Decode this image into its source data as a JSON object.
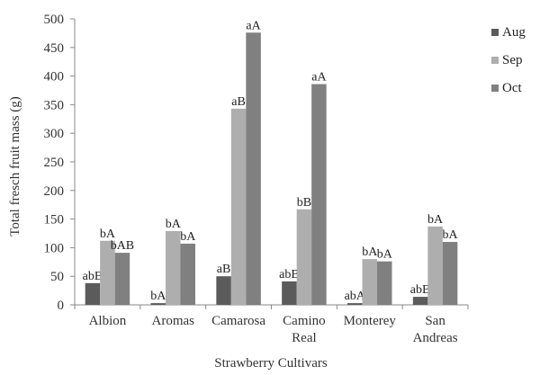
{
  "chart_data": {
    "type": "bar",
    "title": "",
    "xlabel": "Strawberry Cultivars",
    "ylabel": "Total fresch fruit mass (g)",
    "ylim": [
      0,
      500
    ],
    "yticks": [
      0,
      50,
      100,
      150,
      200,
      250,
      300,
      350,
      400,
      450,
      500
    ],
    "grid": false,
    "legend_position": "right-top",
    "categories": [
      "Albion",
      "Aromas",
      "Camarosa",
      "Camino Real",
      "Monterey",
      "San Andreas"
    ],
    "category_lines": [
      [
        "Albion"
      ],
      [
        "Aromas"
      ],
      [
        "Camarosa"
      ],
      [
        "Camino",
        "Real"
      ],
      [
        "Monterey"
      ],
      [
        "San",
        "Andreas"
      ]
    ],
    "series": [
      {
        "name": "Aug",
        "color": "#5b5b5b",
        "values": [
          38,
          3,
          50,
          41,
          3,
          14
        ],
        "labels": [
          "abB",
          "bA",
          "aB",
          "abB",
          "abA",
          "abB"
        ]
      },
      {
        "name": "Sep",
        "color": "#aeaeae",
        "values": [
          112,
          129,
          343,
          167,
          80,
          137
        ],
        "labels": [
          "bA",
          "bA",
          "aB",
          "bB",
          "bA",
          "bA"
        ]
      },
      {
        "name": "Oct",
        "color": "#808080",
        "values": [
          91,
          107,
          476,
          386,
          76,
          110
        ],
        "labels": [
          "bAB",
          "bA",
          "aA",
          "aA",
          "bA",
          "bA"
        ]
      }
    ]
  }
}
